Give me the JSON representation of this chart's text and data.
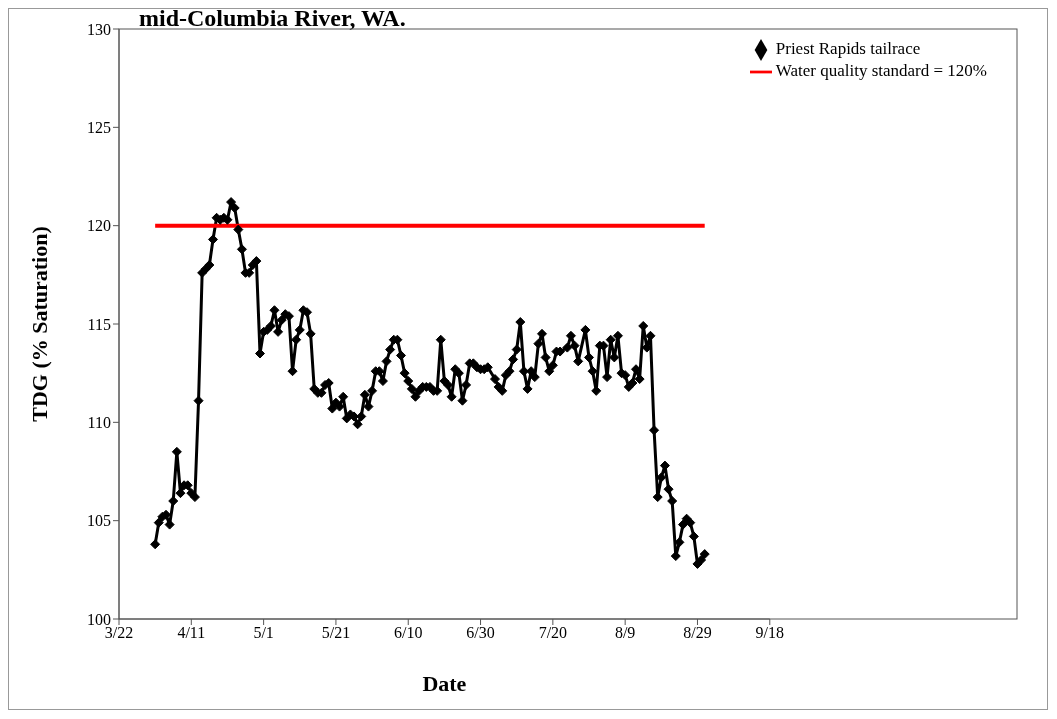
{
  "chart_data": {
    "type": "line",
    "title": "mid-Columbia River, WA.",
    "xlabel": "Date",
    "ylabel": "TDG (% Saturation)",
    "xlim": [
      "--03-22",
      "--09-18"
    ],
    "xticks": [
      {
        "value": "--03-22",
        "label": "3/22"
      },
      {
        "value": "--04-11",
        "label": "4/11"
      },
      {
        "value": "--05-01",
        "label": "5/1"
      },
      {
        "value": "--05-21",
        "label": "5/21"
      },
      {
        "value": "--06-10",
        "label": "6/10"
      },
      {
        "value": "--06-30",
        "label": "6/30"
      },
      {
        "value": "--07-20",
        "label": "7/20"
      },
      {
        "value": "--08-09",
        "label": "8/9"
      },
      {
        "value": "--08-29",
        "label": "8/29"
      },
      {
        "value": "--09-18",
        "label": "9/18"
      }
    ],
    "ylim": [
      100,
      130
    ],
    "yticks": [
      100,
      105,
      110,
      115,
      120,
      125,
      130
    ],
    "legend": "top right",
    "line_style": "solid",
    "series": [
      {
        "name": "Priest Rapids tailrace",
        "color": "#000000",
        "marker": "diamond",
        "x": [
          "--04-01",
          "--04-02",
          "--04-03",
          "--04-04",
          "--04-05",
          "--04-06",
          "--04-07",
          "--04-08",
          "--04-09",
          "--04-10",
          "--04-11",
          "--04-12",
          "--04-13",
          "--04-14",
          "--04-15",
          "--04-16",
          "--04-17",
          "--04-18",
          "--04-19",
          "--04-20",
          "--04-21",
          "--04-22",
          "--04-23",
          "--04-24",
          "--04-25",
          "--04-26",
          "--04-27",
          "--04-28",
          "--04-29",
          "--04-30",
          "--05-01",
          "--05-02",
          "--05-03",
          "--05-04",
          "--05-05",
          "--05-06",
          "--05-07",
          "--05-08",
          "--05-09",
          "--05-10",
          "--05-11",
          "--05-12",
          "--05-13",
          "--05-14",
          "--05-15",
          "--05-16",
          "--05-17",
          "--05-18",
          "--05-19",
          "--05-20",
          "--05-21",
          "--05-22",
          "--05-23",
          "--05-24",
          "--05-25",
          "--05-26",
          "--05-27",
          "--05-28",
          "--05-29",
          "--05-30",
          "--05-31",
          "--06-01",
          "--06-02",
          "--06-03",
          "--06-04",
          "--06-05",
          "--06-06",
          "--06-07",
          "--06-08",
          "--06-09",
          "--06-10",
          "--06-11",
          "--06-12",
          "--06-13",
          "--06-14",
          "--06-15",
          "--06-16",
          "--06-17",
          "--06-18",
          "--06-19",
          "--06-20",
          "--06-21",
          "--06-22",
          "--06-23",
          "--06-24",
          "--06-25",
          "--06-26",
          "--06-27",
          "--06-28",
          "--06-29",
          "--06-30",
          "--07-01",
          "--07-02",
          "--07-04",
          "--07-05",
          "--07-06",
          "--07-07",
          "--07-08",
          "--07-09",
          "--07-10",
          "--07-11",
          "--07-12",
          "--07-13",
          "--07-14",
          "--07-15",
          "--07-16",
          "--07-17",
          "--07-18",
          "--07-19",
          "--07-20",
          "--07-21",
          "--07-22",
          "--07-24",
          "--07-25",
          "--07-26",
          "--07-27",
          "--07-29",
          "--07-30",
          "--07-31",
          "--08-01",
          "--08-02",
          "--08-03",
          "--08-04",
          "--08-05",
          "--08-06",
          "--08-07",
          "--08-08",
          "--08-09",
          "--08-10",
          "--08-11",
          "--08-12",
          "--08-13",
          "--08-14",
          "--08-15",
          "--08-16",
          "--08-17",
          "--08-18",
          "--08-19",
          "--08-20",
          "--08-21",
          "--08-22",
          "--08-23",
          "--08-24",
          "--08-25",
          "--08-26",
          "--08-27",
          "--08-28",
          "--08-29",
          "--08-30",
          "--08-31"
        ],
        "values": [
          103.8,
          104.9,
          105.2,
          105.3,
          104.8,
          106.0,
          108.5,
          106.4,
          106.8,
          106.8,
          106.4,
          106.2,
          111.1,
          117.6,
          117.8,
          118.0,
          119.3,
          120.4,
          120.3,
          120.4,
          120.3,
          121.2,
          120.9,
          119.8,
          118.8,
          117.6,
          117.6,
          118.0,
          118.2,
          113.5,
          114.6,
          114.7,
          114.9,
          115.7,
          114.6,
          115.2,
          115.5,
          115.4,
          112.6,
          114.2,
          114.7,
          115.7,
          115.6,
          114.5,
          111.7,
          111.5,
          111.5,
          111.9,
          112.0,
          110.7,
          111.0,
          110.8,
          111.3,
          110.2,
          110.4,
          110.3,
          109.9,
          110.3,
          111.4,
          110.8,
          111.6,
          112.6,
          112.6,
          112.1,
          113.1,
          113.7,
          114.2,
          114.2,
          113.4,
          112.5,
          112.1,
          111.7,
          111.3,
          111.6,
          111.8,
          111.8,
          111.8,
          111.6,
          111.6,
          114.2,
          112.1,
          111.9,
          111.3,
          112.7,
          112.5,
          111.1,
          111.9,
          113.0,
          113.0,
          112.8,
          112.7,
          112.7,
          112.8,
          112.2,
          111.8,
          111.6,
          112.4,
          112.6,
          113.2,
          113.7,
          115.1,
          112.6,
          111.7,
          112.6,
          112.3,
          114.0,
          114.5,
          113.3,
          112.6,
          112.9,
          113.6,
          113.6,
          113.8,
          114.4,
          113.9,
          113.1,
          114.7,
          113.3,
          112.6,
          111.6,
          113.9,
          113.9,
          112.3,
          114.2,
          113.3,
          114.4,
          112.5,
          112.4,
          111.8,
          112.0,
          112.7,
          112.2,
          114.9,
          113.8,
          114.4,
          109.6,
          106.2,
          107.2,
          107.8,
          106.6,
          106.0,
          103.2,
          103.9,
          104.8,
          105.1,
          104.9,
          104.2,
          102.8,
          103.0,
          103.3
        ]
      },
      {
        "name": "Water quality standard = 120%",
        "color": "#ff0000",
        "marker": "none",
        "x": [
          "--04-01",
          "--08-31"
        ],
        "values": [
          120,
          120
        ]
      }
    ]
  }
}
